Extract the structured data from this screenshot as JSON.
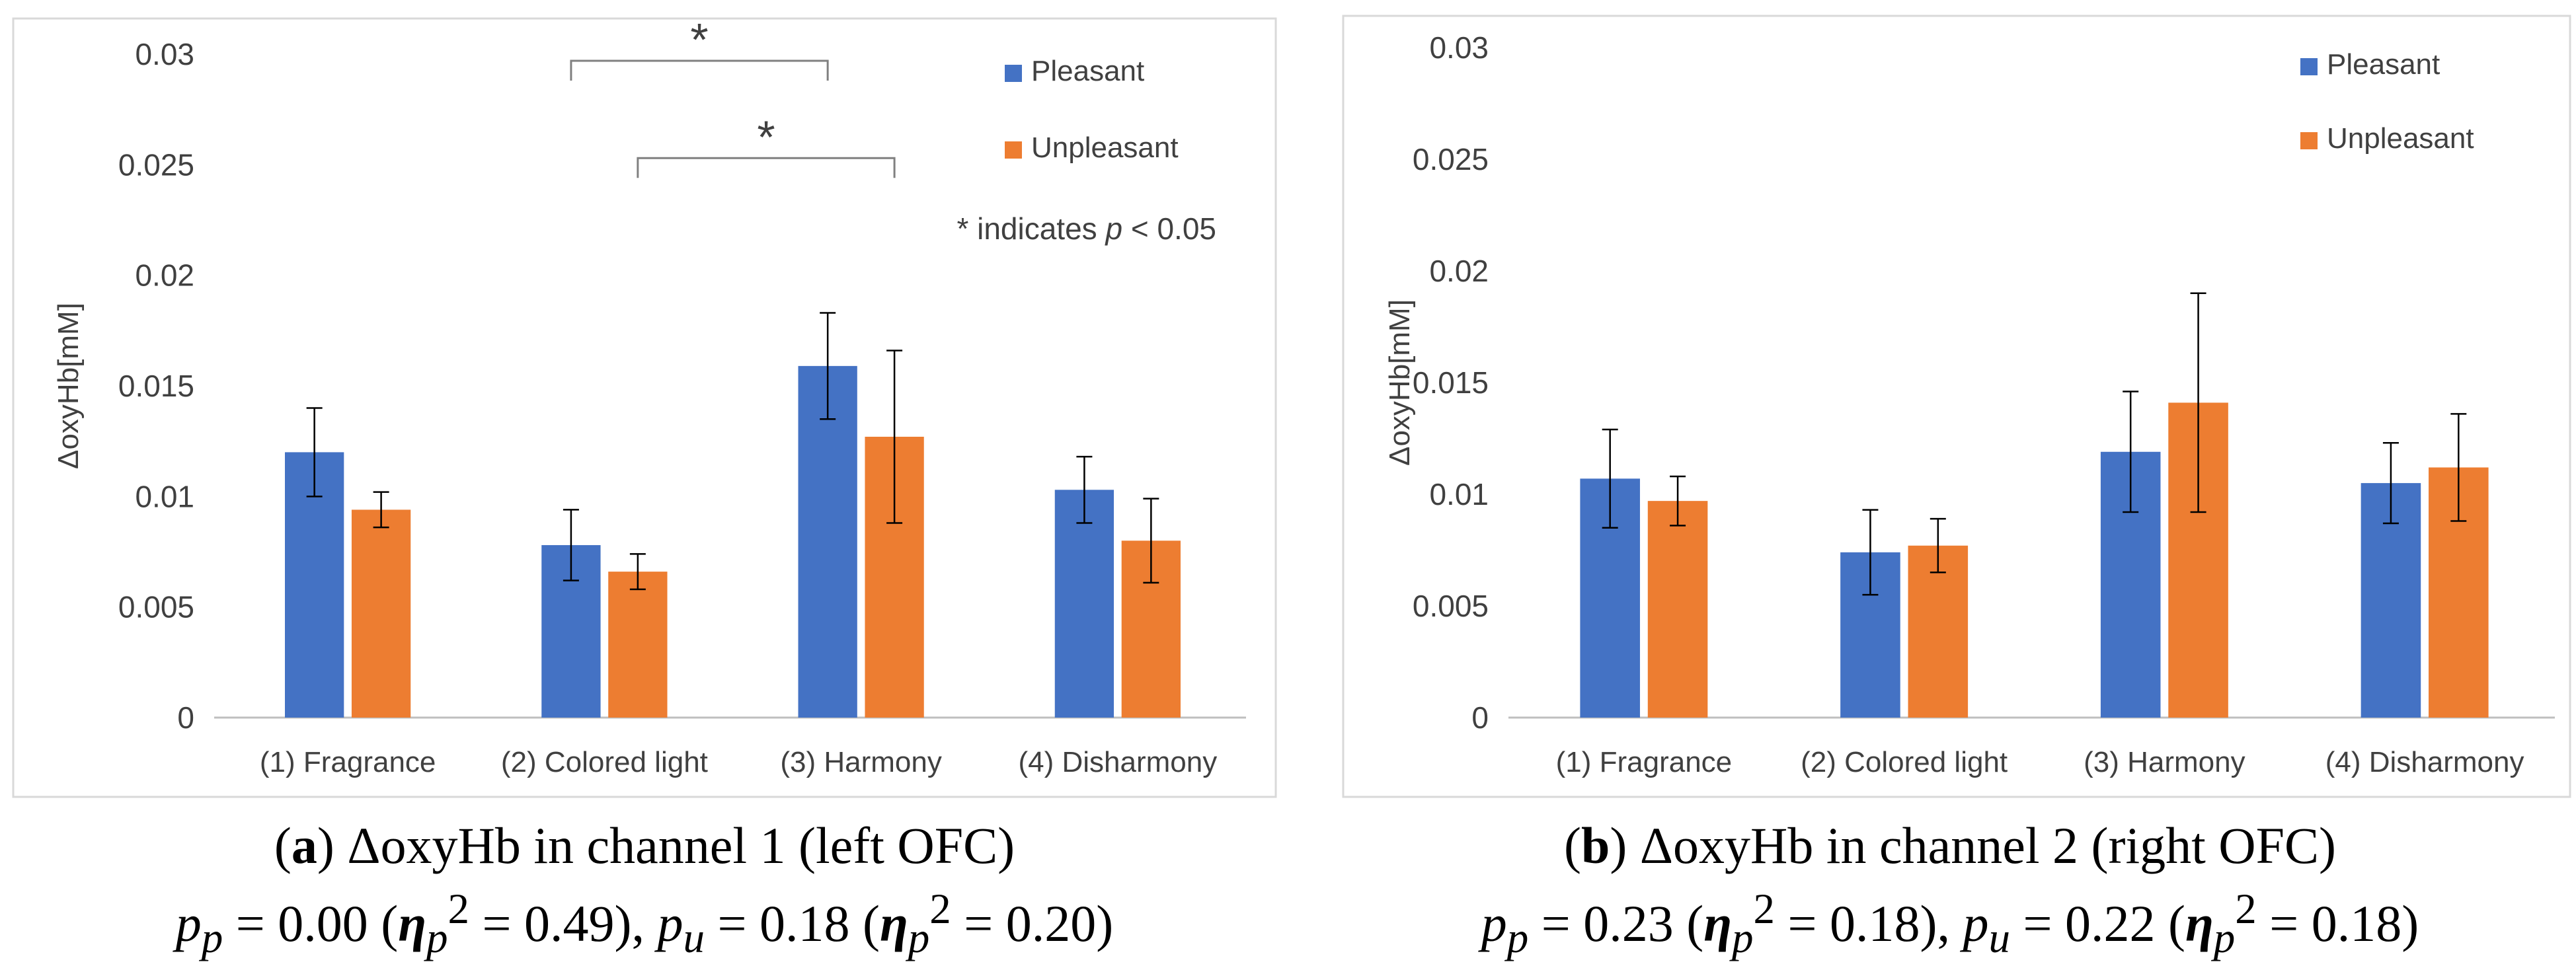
{
  "chart_data": [
    {
      "type": "bar",
      "categories": [
        "(1) Fragrance",
        "(2) Colored light",
        "(3) Harmony",
        "(4) Disharmony"
      ],
      "series": [
        {
          "name": "Pleasant",
          "values": [
            0.012,
            0.0078,
            0.0159,
            0.0103
          ],
          "errors": [
            0.002,
            0.0016,
            0.0024,
            0.0015
          ]
        },
        {
          "name": "Unpleasant",
          "values": [
            0.0094,
            0.0066,
            0.0127,
            0.008
          ],
          "errors": [
            0.0008,
            0.0008,
            0.0039,
            0.0019
          ]
        }
      ],
      "ylabel": "ΔoxyHb[mM]",
      "ylim": [
        0,
        0.03
      ],
      "yticks": [
        "0",
        "0.005",
        "0.01",
        "0.015",
        "0.02",
        "0.025",
        "0.03"
      ],
      "legend_position": "top-right",
      "significance": [
        {
          "from": "(2) Colored light",
          "to": "(3) Harmony",
          "series_from": "Pleasant",
          "series_to": "Pleasant",
          "label": "*"
        },
        {
          "from": "(2) Colored light",
          "to": "(3) Harmony",
          "series_from": "Unpleasant",
          "series_to": "Unpleasant",
          "label": "*"
        }
      ],
      "note": "* indicates p < 0.05",
      "caption": {
        "letter": "a",
        "title": "ΔoxyHb in channel 1 (left OFC)",
        "stats": [
          {
            "sub": "p",
            "p": "0.00",
            "eta": "0.49"
          },
          {
            "sub": "u",
            "p": "0.18",
            "eta": "0.20"
          }
        ]
      }
    },
    {
      "type": "bar",
      "categories": [
        "(1) Fragrance",
        "(2) Colored light",
        "(3) Harmony",
        "(4) Disharmony"
      ],
      "series": [
        {
          "name": "Pleasant",
          "values": [
            0.0107,
            0.0074,
            0.0119,
            0.0105
          ],
          "errors": [
            0.0022,
            0.0019,
            0.0027,
            0.0018
          ]
        },
        {
          "name": "Unpleasant",
          "values": [
            0.0097,
            0.0077,
            0.0141,
            0.0112
          ],
          "errors": [
            0.0011,
            0.0012,
            0.0049,
            0.0024
          ]
        }
      ],
      "ylabel": "ΔoxyHb[mM]",
      "ylim": [
        0,
        0.03
      ],
      "yticks": [
        "0",
        "0.005",
        "0.01",
        "0.015",
        "0.02",
        "0.025",
        "0.03"
      ],
      "legend_position": "top-right",
      "caption": {
        "letter": "b",
        "title": "ΔoxyHb in channel 2 (right OFC)",
        "stats": [
          {
            "sub": "p",
            "p": "0.23",
            "eta": "0.18"
          },
          {
            "sub": "u",
            "p": "0.22",
            "eta": "0.18"
          }
        ]
      }
    }
  ],
  "colors": {
    "pleasant": "#4472C4",
    "unpleasant": "#ED7D31",
    "axis": "#BFBFBF",
    "frame": "#D9D9D9"
  },
  "stat_eq": " = ",
  "stat_eta_symbol": "η",
  "stat_separator": ", "
}
